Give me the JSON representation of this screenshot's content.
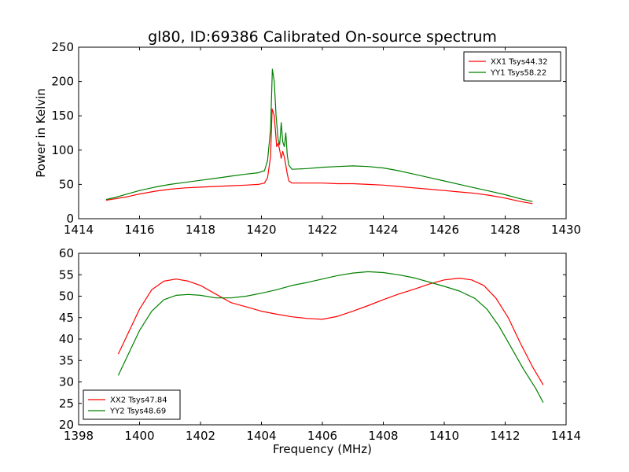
{
  "chart_data": [
    {
      "type": "line",
      "title": "gl80, ID:69386 Calibrated On-source spectrum",
      "xlabel": "",
      "ylabel": "Power in Kelvin",
      "xlim": [
        1414,
        1430
      ],
      "ylim": [
        0,
        250
      ],
      "xticks": [
        "1414",
        "1416",
        "1418",
        "1420",
        "1422",
        "1424",
        "1426",
        "1428",
        "1430"
      ],
      "yticks": [
        "0",
        "50",
        "100",
        "150",
        "200",
        "250"
      ],
      "legend_position": "top-right",
      "grid": false,
      "series": [
        {
          "name": "XX1 Tsys44.32",
          "color": "#ff0000",
          "x": [
            1414.9,
            1415.2,
            1415.6,
            1416.0,
            1416.5,
            1417.0,
            1417.5,
            1418.0,
            1418.5,
            1419.0,
            1419.5,
            1419.9,
            1420.1,
            1420.2,
            1420.3,
            1420.35,
            1420.42,
            1420.5,
            1420.55,
            1420.6,
            1420.65,
            1420.7,
            1420.75,
            1420.8,
            1420.85,
            1420.9,
            1421.0,
            1421.5,
            1422.0,
            1422.5,
            1423.0,
            1423.5,
            1424.0,
            1424.5,
            1425.0,
            1425.5,
            1426.0,
            1426.5,
            1427.0,
            1427.5,
            1428.0,
            1428.5,
            1428.9
          ],
          "y": [
            27,
            29,
            32,
            36,
            40,
            43,
            45,
            46,
            47,
            48,
            49,
            50,
            52,
            60,
            90,
            160,
            150,
            105,
            110,
            100,
            88,
            98,
            90,
            78,
            65,
            55,
            52,
            52,
            52,
            51,
            51,
            50,
            49,
            47,
            45,
            43,
            41,
            39,
            37,
            34,
            30,
            25,
            22
          ]
        },
        {
          "name": "YY1 Tsys58.22",
          "color": "#008000",
          "x": [
            1414.9,
            1415.2,
            1415.6,
            1416.0,
            1416.5,
            1417.0,
            1417.5,
            1418.0,
            1418.5,
            1419.0,
            1419.5,
            1419.9,
            1420.1,
            1420.2,
            1420.3,
            1420.36,
            1420.42,
            1420.48,
            1420.55,
            1420.6,
            1420.65,
            1420.7,
            1420.75,
            1420.8,
            1420.85,
            1420.9,
            1421.0,
            1421.5,
            1422.0,
            1422.5,
            1423.0,
            1423.5,
            1424.0,
            1424.5,
            1425.0,
            1425.5,
            1426.0,
            1426.5,
            1427.0,
            1427.5,
            1428.0,
            1428.5,
            1428.9
          ],
          "y": [
            28,
            31,
            36,
            41,
            46,
            50,
            53,
            56,
            59,
            62,
            65,
            67,
            70,
            85,
            130,
            218,
            200,
            150,
            115,
            108,
            140,
            112,
            105,
            125,
            92,
            78,
            72,
            73,
            75,
            76,
            77,
            76,
            74,
            70,
            65,
            60,
            55,
            50,
            45,
            40,
            35,
            29,
            25
          ]
        }
      ]
    },
    {
      "type": "line",
      "title": "",
      "xlabel": "Frequency (MHz)",
      "ylabel": "",
      "xlim": [
        1398,
        1414
      ],
      "ylim": [
        20,
        60
      ],
      "xticks": [
        "1398",
        "1400",
        "1402",
        "1404",
        "1406",
        "1408",
        "1410",
        "1412",
        "1414"
      ],
      "yticks": [
        "20",
        "25",
        "30",
        "35",
        "40",
        "45",
        "50",
        "55",
        "60"
      ],
      "legend_position": "bottom-left",
      "grid": false,
      "series": [
        {
          "name": "XX2 Tsys47.84",
          "color": "#ff0000",
          "x": [
            1399.3,
            1399.6,
            1400.0,
            1400.4,
            1400.8,
            1401.2,
            1401.6,
            1402.0,
            1402.5,
            1403.0,
            1403.5,
            1404.0,
            1404.5,
            1405.0,
            1405.5,
            1406.0,
            1406.5,
            1407.0,
            1407.5,
            1408.0,
            1408.5,
            1409.0,
            1409.5,
            1410.0,
            1410.5,
            1410.9,
            1411.3,
            1411.7,
            1412.1,
            1412.5,
            1412.9,
            1413.25
          ],
          "y": [
            36.5,
            41,
            47,
            51.5,
            53.5,
            54,
            53.5,
            52.5,
            50.5,
            48.5,
            47.5,
            46.5,
            45.8,
            45.2,
            44.8,
            44.6,
            45.3,
            46.5,
            47.8,
            49.2,
            50.5,
            51.6,
            52.8,
            53.8,
            54.2,
            53.8,
            52.5,
            49.5,
            45,
            39,
            33.5,
            29.3
          ]
        },
        {
          "name": "YY2 Tsys48.69",
          "color": "#008000",
          "x": [
            1399.3,
            1399.6,
            1400.0,
            1400.4,
            1400.8,
            1401.2,
            1401.6,
            1402.0,
            1402.5,
            1403.0,
            1403.5,
            1404.0,
            1404.5,
            1405.0,
            1405.5,
            1406.0,
            1406.5,
            1407.0,
            1407.5,
            1408.0,
            1408.5,
            1409.0,
            1409.5,
            1410.0,
            1410.5,
            1411.0,
            1411.4,
            1411.8,
            1412.2,
            1412.6,
            1413.0,
            1413.25
          ],
          "y": [
            31.5,
            36,
            42,
            46.5,
            49.2,
            50.2,
            50.4,
            50.2,
            49.6,
            49.6,
            50.0,
            50.7,
            51.5,
            52.5,
            53.2,
            54.0,
            54.8,
            55.4,
            55.7,
            55.5,
            55.0,
            54.3,
            53.3,
            52.3,
            51.2,
            49.5,
            47.0,
            43.0,
            38.0,
            33.0,
            28.5,
            25.2
          ]
        }
      ]
    }
  ]
}
